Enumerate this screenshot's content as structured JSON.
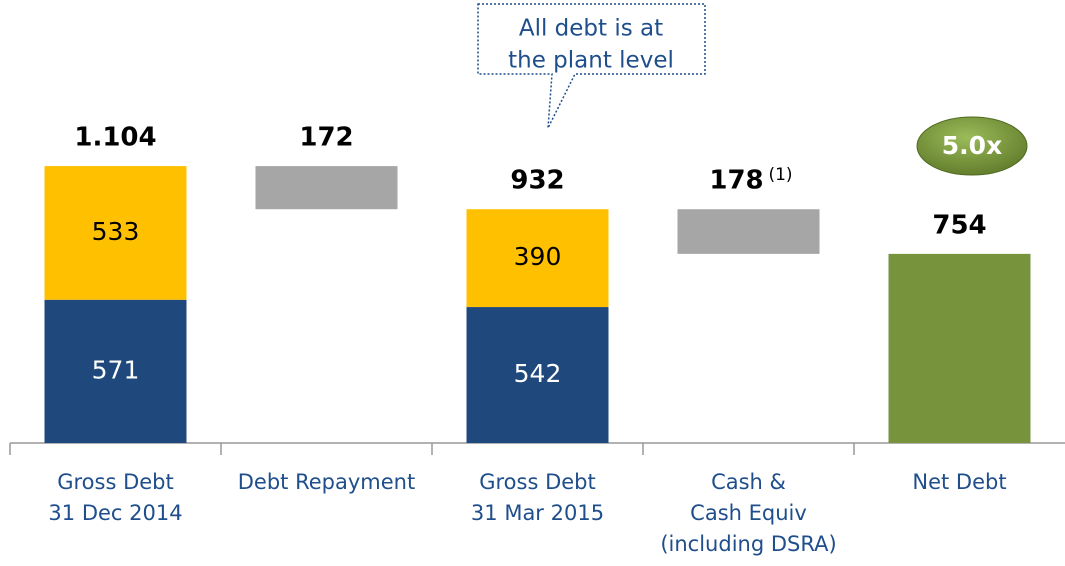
{
  "chart_data": {
    "type": "waterfall",
    "categories": [
      [
        "Gross Debt",
        "31 Dec 2014"
      ],
      [
        "Debt Repayment"
      ],
      [
        "Gross Debt",
        "31 Mar 2015"
      ],
      [
        "Cash &",
        "Cash Equiv",
        "(including DSRA)"
      ],
      [
        "Net Debt"
      ]
    ],
    "kinds": [
      "total",
      "decrease",
      "total",
      "decrease",
      "total"
    ],
    "values": [
      1104,
      172,
      932,
      178,
      754
    ],
    "value_labels": [
      "1.104",
      "172",
      "932",
      "178",
      "754"
    ],
    "notes": [
      null,
      null,
      null,
      "(1)",
      null
    ],
    "series": [
      {
        "color": "#1f497d",
        "label_color": "#ffffff",
        "values": [
          571,
          null,
          542,
          null,
          null
        ]
      },
      {
        "color": "#ffc000",
        "label_color": "#000000",
        "values": [
          533,
          null,
          390,
          null,
          null
        ]
      }
    ],
    "decrease_color": "#a6a6a6",
    "total_color": "#77933c",
    "ylim": [
      0,
      1200
    ],
    "annotation": [
      "All debt is at",
      "the plant level"
    ],
    "badge": "5.0x"
  }
}
